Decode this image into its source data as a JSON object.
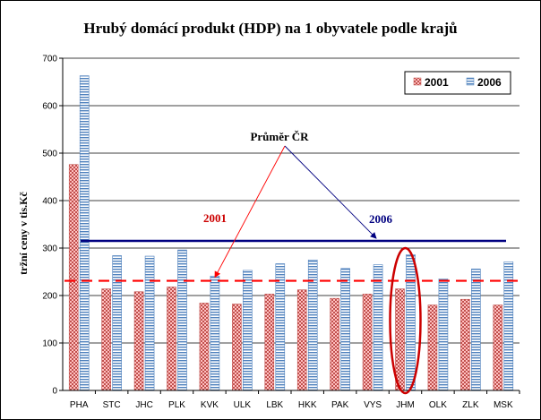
{
  "chart_data": {
    "type": "bar",
    "title": "Hrubý domácí produkt (HDP) na 1 obyvatele podle krajů",
    "ylabel": "tržní ceny v tis.Kč",
    "xlabel": "",
    "categories": [
      "PHA",
      "STC",
      "JHC",
      "PLK",
      "KVK",
      "ULK",
      "LBK",
      "HKK",
      "PAK",
      "VYS",
      "JHM",
      "OLK",
      "ZLK",
      "MSK"
    ],
    "series": [
      {
        "name": "2001",
        "values": [
          476,
          214,
          208,
          218,
          184,
          182,
          203,
          212,
          194,
          203,
          214,
          180,
          192,
          180
        ]
      },
      {
        "name": "2006",
        "values": [
          663,
          284,
          283,
          296,
          241,
          253,
          267,
          275,
          257,
          265,
          286,
          235,
          256,
          271
        ]
      }
    ],
    "ylim": [
      0,
      700
    ],
    "yticks": [
      0,
      100,
      200,
      300,
      400,
      500,
      600,
      700
    ],
    "grid": true,
    "legend": "top-right",
    "reference_lines": [
      {
        "label": "2001",
        "value": 231,
        "style": "dashed",
        "color": "#ff0000"
      },
      {
        "label": "2006",
        "value": 315,
        "style": "solid",
        "color": "#000080"
      }
    ],
    "annotation_text": "Průměr ČR",
    "highlight_category": "JHM",
    "colors": {
      "series_2001": "#c0504d",
      "series_2001_pattern": "#ffc0c0",
      "series_2006": "#4f81bd",
      "series_2006_pattern": "#ffffff",
      "label_2001": "#cc0000",
      "label_2006": "#000080",
      "highlight": "#cc0000"
    }
  }
}
